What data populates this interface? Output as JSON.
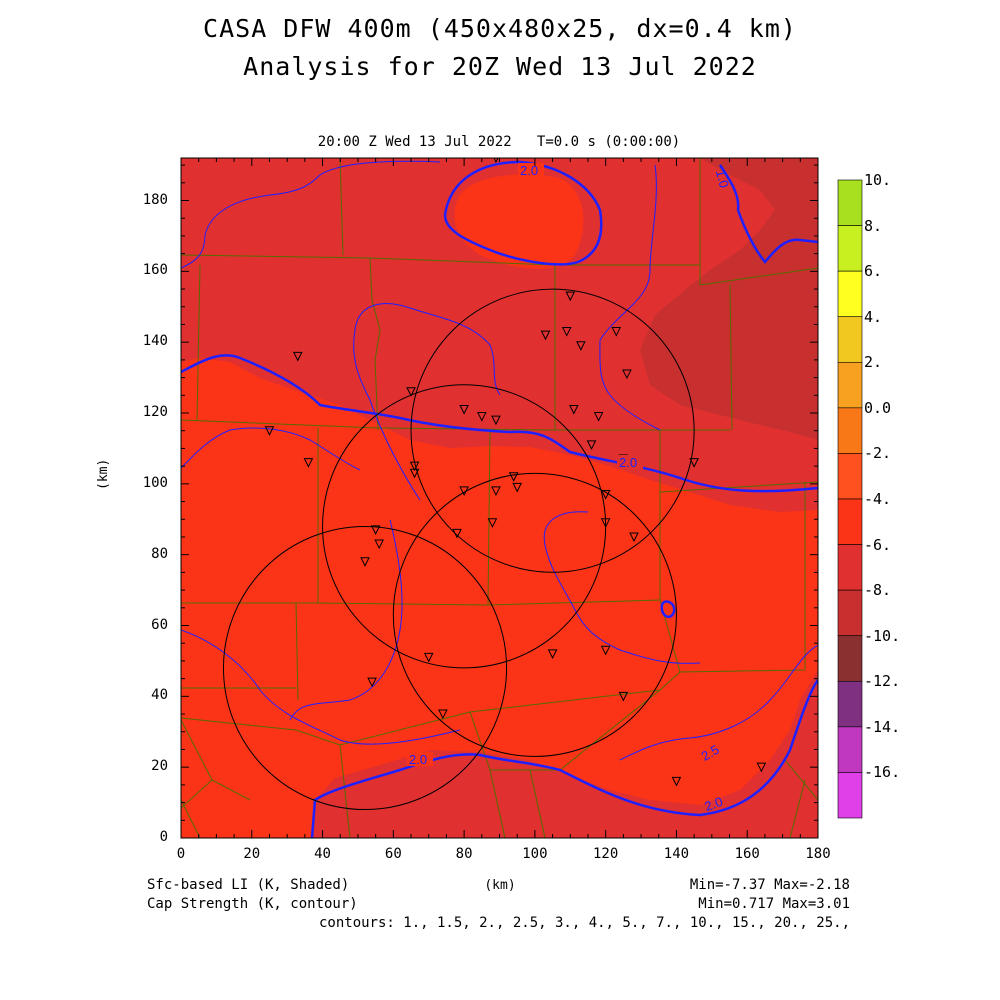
{
  "title": {
    "line1": "CASA DFW 400m (450x480x25, dx=0.4 km)",
    "line2": "Analysis for 20Z Wed 13 Jul 2022"
  },
  "subtitle": "20:00 Z Wed 13 Jul 2022   T=0.0 s (0:00:00)",
  "axes": {
    "xlabel": "(km)",
    "ylabel": "(km)",
    "xlim": [
      0,
      180
    ],
    "ylim": [
      0,
      192
    ],
    "x_ticks": [
      "0",
      "20",
      "40",
      "60",
      "80",
      "100",
      "120",
      "140",
      "160",
      "180"
    ],
    "y_ticks": [
      "0",
      "20",
      "40",
      "60",
      "80",
      "100",
      "120",
      "140",
      "160",
      "180"
    ]
  },
  "colorbar": {
    "labels": [
      "10.",
      "8.",
      "6.",
      "4.",
      "2.",
      "0.0",
      "-2.",
      "-4.",
      "-6.",
      "-8.",
      "-10.",
      "-12.",
      "-14.",
      "-16."
    ],
    "colors": [
      "#a8e020",
      "#c8f020",
      "#ffff20",
      "#f0c820",
      "#f8a020",
      "#f87818",
      "#ff5020",
      "#fb3418",
      "#e03030",
      "#c83030",
      "#8a3030",
      "#803080",
      "#c038c0",
      "#e040e8"
    ]
  },
  "fields": {
    "shaded": "Sfc-based LI (K, Shaded)",
    "contour": "Cap Strength (K, contour)",
    "shaded_minmax": "Min=-7.37 Max=-2.18",
    "contour_minmax": "Min=0.717 Max=3.01",
    "contours": "contours: 1., 1.5, 2., 2.5, 3., 4., 5., 7., 10., 15., 20., 25.,"
  },
  "contour_labels": [
    "2.0",
    "1.0",
    "2.0",
    "2.0",
    "2.5",
    "2.0"
  ],
  "colors": {
    "li_-2_to_-4": "#fb3418",
    "li_-4_to_-6": "#e03030",
    "li_-6_to_-8": "#c83030",
    "contour": "#2020ff",
    "county": "#556b00",
    "radar_ring": "#000000"
  },
  "radar_rings_km": [
    {
      "x": 105,
      "y": 115,
      "r": 40
    },
    {
      "x": 80,
      "y": 88,
      "r": 40
    },
    {
      "x": 100,
      "y": 63,
      "r": 40
    },
    {
      "x": 52,
      "y": 48,
      "r": 40
    }
  ],
  "stations_km": [
    [
      89,
      192
    ],
    [
      110,
      153
    ],
    [
      103,
      142
    ],
    [
      109,
      143
    ],
    [
      113,
      139
    ],
    [
      123,
      143
    ],
    [
      126,
      131
    ],
    [
      33,
      136
    ],
    [
      65,
      126
    ],
    [
      80,
      121
    ],
    [
      85,
      119
    ],
    [
      89,
      118
    ],
    [
      111,
      121
    ],
    [
      118,
      119
    ],
    [
      116,
      111
    ],
    [
      25,
      115
    ],
    [
      125,
      107
    ],
    [
      145,
      106
    ],
    [
      36,
      106
    ],
    [
      66,
      105
    ],
    [
      66,
      103
    ],
    [
      94,
      102
    ],
    [
      95,
      99
    ],
    [
      89,
      98
    ],
    [
      80,
      98
    ],
    [
      120,
      97
    ],
    [
      120,
      89
    ],
    [
      88,
      89
    ],
    [
      128,
      85
    ],
    [
      55,
      87
    ],
    [
      56,
      83
    ],
    [
      78,
      86
    ],
    [
      52,
      78
    ],
    [
      70,
      51
    ],
    [
      105,
      52
    ],
    [
      120,
      53
    ],
    [
      54,
      44
    ],
    [
      125,
      40
    ],
    [
      74,
      35
    ],
    [
      140,
      16
    ],
    [
      164,
      20
    ]
  ]
}
